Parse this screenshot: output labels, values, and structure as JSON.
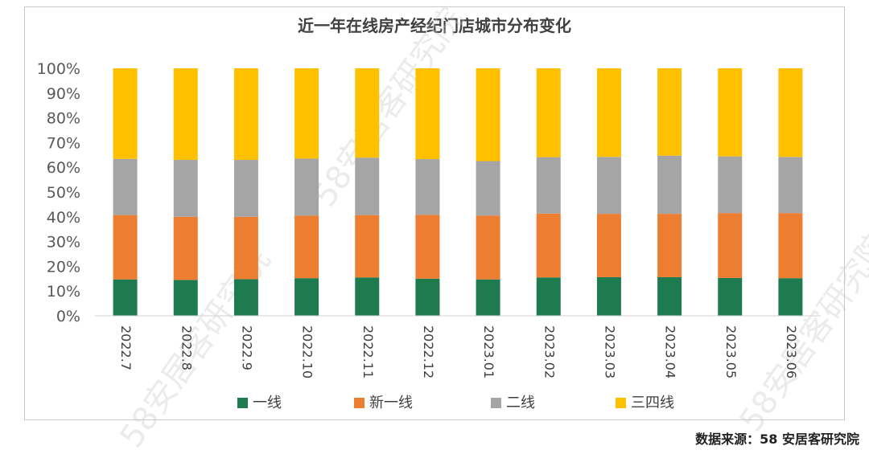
{
  "chart_data": {
    "type": "bar",
    "stacked": true,
    "percent": true,
    "title": "近一年在线房产经纪门店城市分布变化",
    "categories": [
      "2022.7",
      "2022.8",
      "2022.9",
      "2022.10",
      "2022.11",
      "2022.12",
      "2023.01",
      "2023.02",
      "2023.03",
      "2023.04",
      "2023.05",
      "2023.06"
    ],
    "series": [
      {
        "name": "一线",
        "color": "#1e7b4f",
        "values": [
          14.7,
          14.5,
          14.8,
          15.2,
          15.5,
          15.0,
          14.7,
          15.5,
          15.6,
          15.6,
          15.3,
          15.2
        ]
      },
      {
        "name": "新一线",
        "color": "#ed7d31",
        "values": [
          26.0,
          25.5,
          25.2,
          25.3,
          25.2,
          25.8,
          25.8,
          25.8,
          25.6,
          25.6,
          26.2,
          26.3
        ]
      },
      {
        "name": "二线",
        "color": "#a5a5a5",
        "values": [
          22.7,
          23.0,
          23.0,
          23.0,
          23.2,
          22.5,
          22.0,
          22.8,
          23.0,
          23.5,
          22.9,
          22.7
        ]
      },
      {
        "name": "三四线",
        "color": "#ffc000",
        "values": [
          36.6,
          37.0,
          37.0,
          36.5,
          36.1,
          36.7,
          37.5,
          35.9,
          35.8,
          35.3,
          35.6,
          35.8
        ]
      }
    ],
    "yticks": [
      "0%",
      "10%",
      "20%",
      "30%",
      "40%",
      "50%",
      "60%",
      "70%",
      "80%",
      "90%",
      "100%"
    ],
    "ylim": [
      0,
      100
    ],
    "grid": false,
    "legend": "bottom"
  },
  "source": "数据来源：58 安居客研究院",
  "watermark": "58安居客研究院"
}
